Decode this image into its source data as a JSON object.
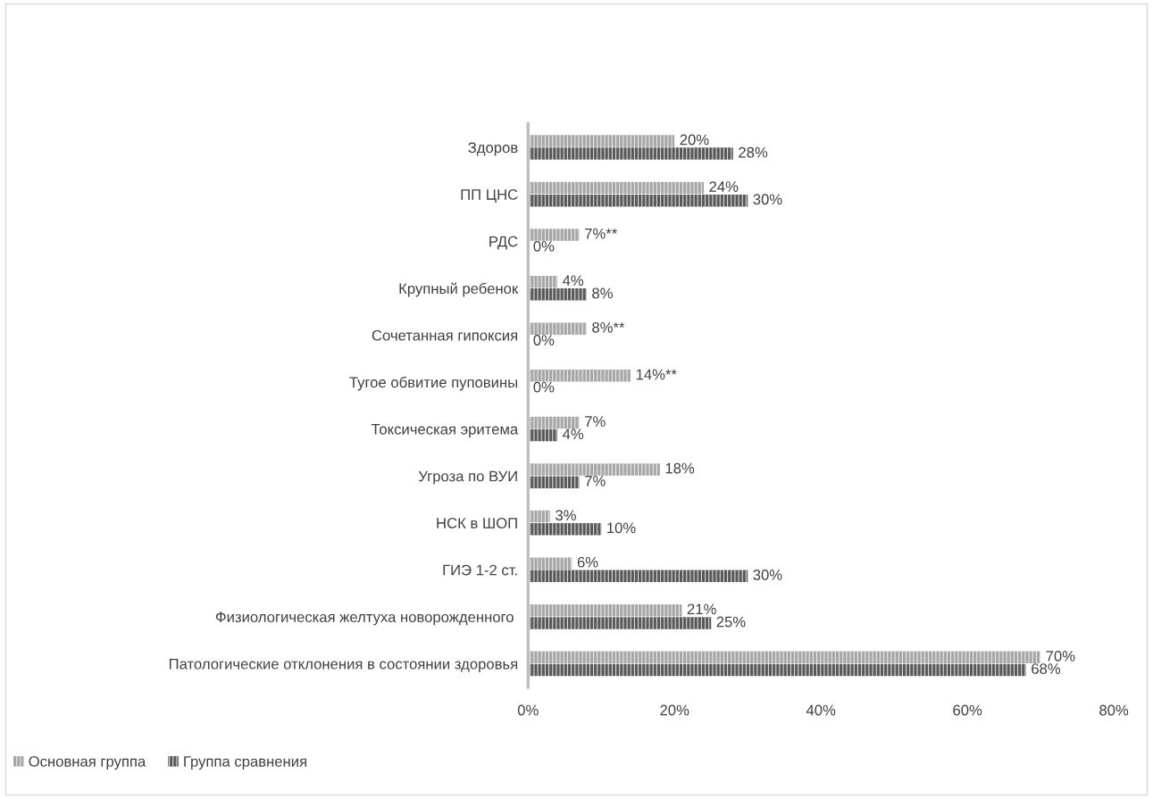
{
  "chart_data": {
    "type": "bar",
    "orientation": "horizontal",
    "categories": [
      "Здоров",
      "ПП ЦНС",
      "РДС",
      "Крупный ребенок",
      "Сочетанная гипоксия",
      "Тугое обвитие пуповины",
      "Токсическая эритема",
      "Угроза по ВУИ",
      "НСК в ШОП",
      "ГИЭ 1-2 ст.",
      "Физиологическая желтуха новорожденного ",
      "Патологические отклонения в состоянии здоровья"
    ],
    "series": [
      {
        "name": "Основная группа",
        "color": "#a6a6a6",
        "values": [
          20,
          24,
          7,
          4,
          8,
          14,
          7,
          18,
          3,
          6,
          21,
          70
        ],
        "value_labels": [
          "20%",
          "24%",
          "7%**",
          "4%",
          "8%**",
          "14%**",
          "7%",
          "18%",
          "3%",
          "6%",
          "21%",
          "70%"
        ]
      },
      {
        "name": "Группа сравнения",
        "color": "#595959",
        "values": [
          28,
          30,
          0,
          8,
          0,
          0,
          4,
          7,
          10,
          30,
          25,
          68
        ],
        "value_labels": [
          "28%",
          "30%",
          "0%",
          "8%",
          "0%",
          "0%",
          "4%",
          "7%",
          "10%",
          "30%",
          "25%",
          "68%"
        ]
      }
    ],
    "xlim": [
      0,
      80
    ],
    "xticks": [
      {
        "value": 0,
        "label": "0%"
      },
      {
        "value": 20,
        "label": "20%"
      },
      {
        "value": 40,
        "label": "40%"
      },
      {
        "value": 60,
        "label": "60%"
      },
      {
        "value": 80,
        "label": "80%"
      }
    ],
    "grid": false,
    "legend": "bottom left"
  }
}
